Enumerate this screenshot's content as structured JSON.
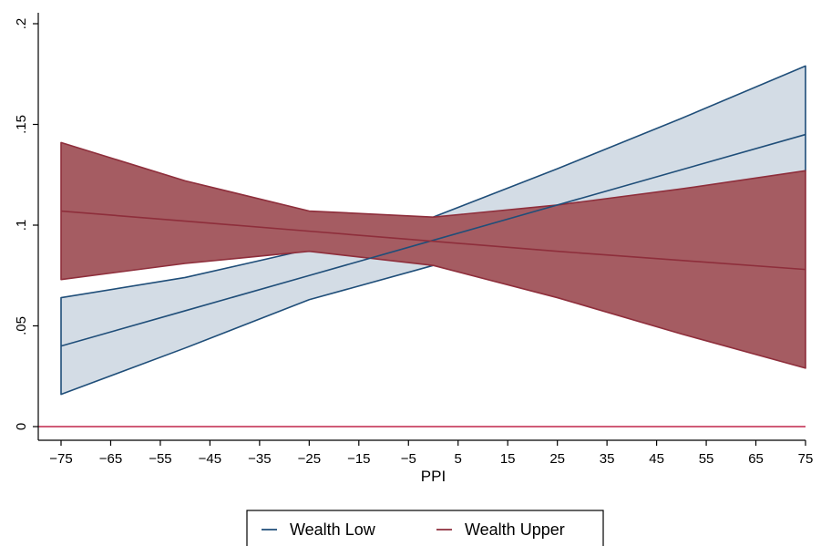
{
  "chart_data": {
    "type": "line",
    "title": "",
    "xlabel": "PPI",
    "ylabel": "",
    "xlim": [
      -75,
      75
    ],
    "ylim": [
      0,
      0.2
    ],
    "x_ticks": [
      -75,
      -65,
      -55,
      -45,
      -35,
      -25,
      -15,
      -5,
      5,
      15,
      25,
      35,
      45,
      55,
      65,
      75
    ],
    "x_tick_labels": [
      "−75",
      "−65",
      "−55",
      "−45",
      "−35",
      "−25",
      "−15",
      "−5",
      "5",
      "15",
      "25",
      "35",
      "45",
      "55",
      "65",
      "75"
    ],
    "y_ticks": [
      0,
      0.05,
      0.1,
      0.15,
      0.2
    ],
    "y_tick_labels": [
      "0",
      ".05",
      ".1",
      ".15",
      ".2"
    ],
    "grid": false,
    "reference_line": {
      "y": 0,
      "color": "#c0264a"
    },
    "legend": {
      "position": "bottom",
      "entries": [
        "Wealth Low",
        "Wealth Upper"
      ]
    },
    "series": [
      {
        "name": "Wealth Low",
        "color": "#1f4e79",
        "band_fill": "#d3dce5",
        "x": [
          -75,
          -50,
          -25,
          0,
          25,
          50,
          75
        ],
        "estimate": [
          0.04,
          0.0575,
          0.075,
          0.0925,
          0.11,
          0.1275,
          0.145
        ],
        "lower": [
          0.016,
          0.039,
          0.063,
          0.08,
          0.094,
          0.11,
          0.127
        ],
        "upper": [
          0.064,
          0.074,
          0.088,
          0.104,
          0.128,
          0.153,
          0.179
        ]
      },
      {
        "name": "Wealth Upper",
        "color": "#8e2e3b",
        "band_fill": "#a55c62",
        "x": [
          -75,
          -50,
          -25,
          0,
          25,
          50,
          75
        ],
        "estimate": [
          0.107,
          0.102,
          0.097,
          0.092,
          0.087,
          0.0825,
          0.078
        ],
        "lower": [
          0.073,
          0.081,
          0.087,
          0.08,
          0.064,
          0.046,
          0.029
        ],
        "upper": [
          0.141,
          0.122,
          0.107,
          0.104,
          0.11,
          0.118,
          0.127
        ]
      }
    ]
  }
}
